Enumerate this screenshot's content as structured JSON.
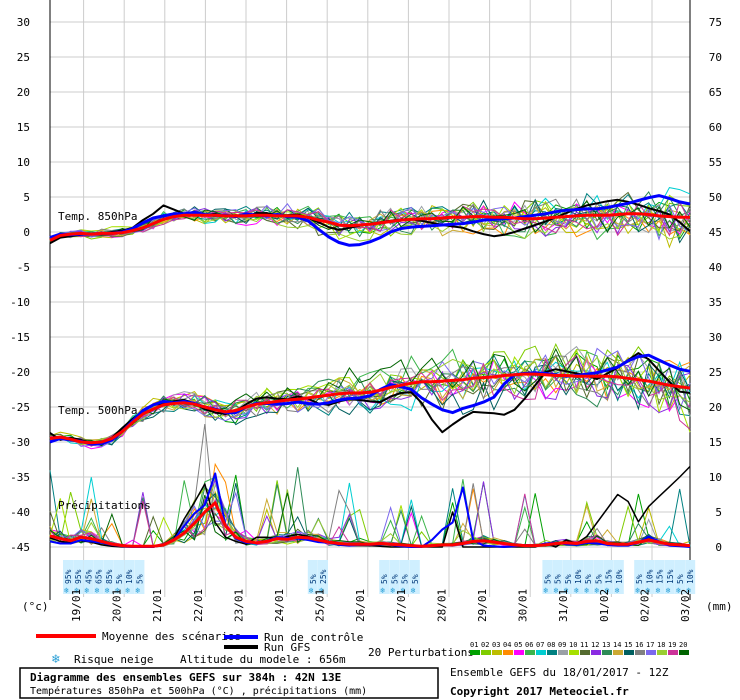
{
  "chart_data": {
    "type": "line",
    "y_left_ticks": [
      30,
      25,
      20,
      15,
      10,
      5,
      0,
      -5,
      -10,
      -15,
      -20,
      -25,
      -30,
      -35,
      -40,
      -45
    ],
    "y_right_ticks": [
      75,
      70,
      65,
      60,
      55,
      50,
      45,
      40,
      35,
      30,
      25,
      20,
      15,
      10,
      5,
      0
    ],
    "y_left_unit": "(°c)",
    "y_right_unit": "(mm)",
    "ylim": [
      -45,
      30
    ],
    "x_dates": [
      "19/01",
      "20/01",
      "21/01",
      "22/01",
      "23/01",
      "24/01",
      "25/01",
      "26/01",
      "27/01",
      "28/01",
      "29/01",
      "30/01",
      "31/01",
      "01/02",
      "02/02",
      "03/02"
    ],
    "section_labels": {
      "t850": "Temp. 850hPa",
      "t500": "Temp. 500hPa",
      "precip": "Précipitations"
    },
    "snow_risk": [
      {
        "slot": 0,
        "pct": "95%"
      },
      {
        "slot": 1,
        "pct": "95%"
      },
      {
        "slot": 2,
        "pct": "45%"
      },
      {
        "slot": 3,
        "pct": "65%"
      },
      {
        "slot": 4,
        "pct": "85%"
      },
      {
        "slot": 5,
        "pct": "5%"
      },
      {
        "slot": 6,
        "pct": "10%"
      },
      {
        "slot": 7,
        "pct": "5%"
      },
      {
        "slot": 24,
        "pct": "5%"
      },
      {
        "slot": 25,
        "pct": "25%"
      },
      {
        "slot": 31,
        "pct": "5%"
      },
      {
        "slot": 32,
        "pct": "5%"
      },
      {
        "slot": 33,
        "pct": "5%"
      },
      {
        "slot": 34,
        "pct": "5%"
      },
      {
        "slot": 47,
        "pct": "5%"
      },
      {
        "slot": 48,
        "pct": "5%"
      },
      {
        "slot": 49,
        "pct": "5%"
      },
      {
        "slot": 50,
        "pct": "10%"
      },
      {
        "slot": 51,
        "pct": "5%"
      },
      {
        "slot": 52,
        "pct": "5%"
      },
      {
        "slot": 53,
        "pct": "15%"
      },
      {
        "slot": 54,
        "pct": "10%"
      },
      {
        "slot": 56,
        "pct": "5%"
      },
      {
        "slot": 57,
        "pct": "10%"
      },
      {
        "slot": 58,
        "pct": "15%"
      },
      {
        "slot": 59,
        "pct": "15%"
      },
      {
        "slot": 60,
        "pct": "5%"
      },
      {
        "slot": 61,
        "pct": "10%"
      }
    ],
    "t850": {
      "mean": [
        -1.2,
        -0.5,
        -0.3,
        -0.2,
        -0.3,
        -0.2,
        -0.2,
        -0.1,
        0.2,
        0.6,
        1.2,
        1.8,
        2.2,
        2.4,
        2.4,
        2.4,
        2.4,
        2.3,
        2.3,
        2.3,
        2.4,
        2.4,
        2.3,
        2.3,
        2.3,
        2.1,
        1.7,
        1.4,
        1.0,
        0.9,
        1.0,
        1.1,
        1.3,
        1.5,
        1.7,
        1.8,
        1.9,
        1.9,
        2.0,
        2.1,
        2.1,
        2.2,
        2.2,
        2.1,
        2.1,
        2.0,
        1.9,
        1.9,
        2.0,
        2.1,
        2.2,
        2.3,
        2.4,
        2.4,
        2.4,
        2.5,
        2.6,
        2.6,
        2.5,
        2.3,
        2.2,
        2.1,
        2.1
      ],
      "control": [
        -0.8,
        -0.3,
        -0.4,
        -0.3,
        -0.3,
        -0.2,
        -0.2,
        0.0,
        0.5,
        1.3,
        2.0,
        2.3,
        2.6,
        2.6,
        2.8,
        2.5,
        2.4,
        2.4,
        2.2,
        2.6,
        2.4,
        2.3,
        2.5,
        2.2,
        2.1,
        1.6,
        0.4,
        -0.7,
        -1.5,
        -1.9,
        -1.8,
        -1.4,
        -0.8,
        0.0,
        0.5,
        0.7,
        0.8,
        0.9,
        1.0,
        1.1,
        1.2,
        1.4,
        1.7,
        1.8,
        1.9,
        2.0,
        2.2,
        2.4,
        2.6,
        2.9,
        3.1,
        3.2,
        3.3,
        3.3,
        3.5,
        3.8,
        4.1,
        4.5,
        4.9,
        5.2,
        4.8,
        4.3,
        4.0
      ],
      "gfs": [
        -1.6,
        -0.8,
        -0.6,
        -0.4,
        -0.3,
        -0.3,
        0.0,
        0.2,
        0.6,
        1.7,
        2.6,
        3.8,
        3.2,
        2.6,
        2.4,
        2.4,
        2.6,
        2.2,
        2.4,
        2.2,
        2.7,
        2.7,
        2.4,
        2.4,
        2.5,
        2.0,
        1.4,
        0.7,
        0.3,
        0.6,
        0.9,
        1.1,
        1.4,
        1.6,
        1.8,
        1.8,
        1.6,
        1.3,
        1.0,
        0.8,
        0.6,
        0.1,
        -0.3,
        -0.6,
        -0.4,
        0.0,
        0.5,
        1.0,
        1.5,
        2.1,
        2.7,
        3.3,
        3.8,
        4.1,
        4.4,
        4.6,
        4.3,
        3.9,
        3.4,
        3.0,
        2.5,
        1.4,
        0.1
      ]
    },
    "t500": {
      "mean": [
        -29.5,
        -29.3,
        -29.6,
        -30.0,
        -30.1,
        -30.0,
        -29.5,
        -28.5,
        -27.2,
        -26.0,
        -25.3,
        -24.7,
        -24.5,
        -24.4,
        -24.6,
        -25.0,
        -25.4,
        -25.7,
        -25.5,
        -25.0,
        -24.6,
        -24.4,
        -24.2,
        -24.0,
        -23.9,
        -23.7,
        -23.5,
        -23.3,
        -23.1,
        -23.0,
        -23.0,
        -22.9,
        -22.6,
        -22.2,
        -21.9,
        -21.6,
        -21.4,
        -21.4,
        -21.3,
        -21.2,
        -21.1,
        -20.9,
        -20.8,
        -20.7,
        -20.5,
        -20.4,
        -20.3,
        -20.3,
        -20.4,
        -20.5,
        -20.5,
        -20.6,
        -20.6,
        -20.6,
        -20.6,
        -20.7,
        -20.9,
        -21.1,
        -21.3,
        -21.6,
        -21.9,
        -22.1,
        -22.3
      ],
      "control": [
        -30.0,
        -29.5,
        -29.7,
        -29.9,
        -30.3,
        -30.2,
        -29.7,
        -28.5,
        -27.0,
        -25.5,
        -24.7,
        -24.2,
        -24.4,
        -24.2,
        -24.5,
        -25.0,
        -25.3,
        -25.8,
        -25.8,
        -25.0,
        -24.5,
        -24.5,
        -24.6,
        -24.5,
        -24.3,
        -24.5,
        -24.6,
        -24.4,
        -24.0,
        -23.8,
        -23.7,
        -23.4,
        -22.5,
        -21.8,
        -22.1,
        -22.5,
        -23.7,
        -24.6,
        -25.4,
        -25.8,
        -25.2,
        -24.8,
        -24.3,
        -23.6,
        -21.7,
        -20.4,
        -20.2,
        -20.1,
        -20.2,
        -20.4,
        -20.6,
        -20.5,
        -20.3,
        -20.1,
        -19.7,
        -19.3,
        -18.4,
        -17.8,
        -17.6,
        -18.3,
        -19.0,
        -19.6,
        -19.9
      ],
      "gfs": [
        -28.7,
        -29.7,
        -29.4,
        -29.7,
        -30.2,
        -30.1,
        -29.4,
        -28.0,
        -26.7,
        -25.6,
        -24.7,
        -24.5,
        -24.2,
        -24.0,
        -24.5,
        -25.3,
        -25.8,
        -26.0,
        -25.6,
        -24.6,
        -23.8,
        -23.6,
        -23.8,
        -23.9,
        -23.5,
        -23.8,
        -24.5,
        -24.7,
        -24.2,
        -23.9,
        -24.0,
        -24.2,
        -24.3,
        -23.5,
        -23.0,
        -22.9,
        -24.4,
        -26.8,
        -28.6,
        -27.5,
        -26.5,
        -25.7,
        -25.8,
        -25.9,
        -26.1,
        -25.4,
        -23.8,
        -21.9,
        -20.0,
        -19.6,
        -19.9,
        -20.2,
        -20.5,
        -21.0,
        -20.2,
        -19.4,
        -18.3,
        -17.3,
        -18.2,
        -19.8,
        -21.4,
        -22.8,
        -23.0
      ]
    },
    "precip_mm": {
      "mean": [
        1.6,
        1.2,
        0.9,
        1.4,
        1.2,
        0.8,
        0.4,
        0.2,
        0.1,
        0.1,
        0.1,
        0.3,
        1.0,
        2.0,
        3.4,
        5.0,
        6.3,
        3.0,
        1.4,
        0.8,
        0.6,
        0.8,
        1.2,
        1.1,
        1.4,
        1.3,
        1.0,
        0.7,
        0.5,
        0.4,
        0.4,
        0.4,
        0.5,
        0.4,
        0.3,
        0.2,
        0.1,
        0.2,
        0.3,
        0.3,
        0.5,
        0.8,
        0.9,
        0.7,
        0.5,
        0.3,
        0.2,
        0.2,
        0.3,
        0.5,
        0.6,
        0.5,
        0.8,
        0.9,
        0.5,
        0.4,
        0.4,
        0.7,
        1.0,
        0.7,
        0.4,
        0.3,
        0.2
      ],
      "control": [
        0.8,
        0.5,
        0.5,
        1.0,
        0.8,
        0.6,
        0.3,
        0.1,
        0.0,
        0.0,
        0.0,
        0.4,
        1.0,
        3.0,
        4.8,
        6.0,
        10.5,
        3.0,
        1.2,
        0.6,
        0.5,
        0.9,
        1.4,
        1.3,
        1.2,
        1.0,
        0.7,
        0.6,
        0.3,
        0.2,
        0.3,
        0.3,
        0.4,
        0.3,
        0.1,
        0.0,
        0.0,
        1.0,
        2.5,
        3.5,
        8.5,
        1.0,
        0.2,
        0.1,
        0.0,
        0.1,
        0.3,
        0.2,
        0.5,
        0.6,
        0.4,
        0.3,
        0.6,
        0.5,
        0.3,
        0.2,
        0.2,
        0.6,
        1.5,
        0.8,
        0.2,
        0.1,
        0.0
      ],
      "gfs": [
        1.3,
        0.8,
        0.6,
        0.9,
        0.7,
        0.3,
        0.1,
        0.0,
        0.0,
        0.0,
        0.0,
        0.2,
        1.2,
        4.0,
        6.4,
        9.0,
        3.5,
        1.4,
        0.8,
        0.4,
        1.4,
        1.4,
        1.2,
        1.5,
        1.8,
        1.5,
        1.0,
        0.6,
        0.4,
        0.2,
        0.2,
        0.2,
        0.1,
        0.0,
        0.0,
        0.0,
        0.0,
        0.0,
        0.0,
        5.0,
        0.0,
        0.0,
        0.0,
        0.0,
        0.0,
        0.0,
        0.0,
        0.0,
        0.5,
        0.0,
        1.0,
        0.5,
        1.5,
        3.5,
        5.5,
        7.5,
        6.5,
        3.6,
        5.8,
        7.2,
        8.6,
        10.0,
        11.5
      ]
    },
    "member_colors": [
      "#00a000",
      "#7fcc00",
      "#bdbd00",
      "#ff8c00",
      "#ff00ff",
      "#3cb44b",
      "#00ced1",
      "#008080",
      "#9aa0a6",
      "#a6e000",
      "#556b2f",
      "#8a2be2",
      "#2e8b57",
      "#ccaa33",
      "#005f5f",
      "#808080",
      "#7b68ee",
      "#9acd32",
      "#cc3399",
      "#006400"
    ],
    "legend": {
      "mean": "Moyenne des scénarios",
      "control": "Run de contrôle",
      "gfs": "Run GFS",
      "perturbations": "20 Perturbations",
      "perturbation_numbers": [
        "01",
        "02",
        "03",
        "04",
        "05",
        "06",
        "07",
        "08",
        "09",
        "10",
        "11",
        "12",
        "13",
        "14",
        "15",
        "16",
        "17",
        "18",
        "19",
        "20"
      ],
      "snow": "Risque neige",
      "altitude": "Altitude du modele : 656m",
      "run_info": "Ensemble GEFS du 18/01/2017 - 12Z",
      "copyright": "Copyright 2017 Meteociel.fr"
    },
    "box": {
      "title": "Diagramme des ensembles GEFS sur 384h : 42N 13E",
      "subtitle": "Températures 850hPa et 500hPa (°C) , précipitations (mm)"
    },
    "colors": {
      "mean": "#ff0000",
      "control": "#0000ff",
      "gfs": "#000000",
      "grid": "#cccccc",
      "snow_bg": "#cfefff"
    }
  }
}
